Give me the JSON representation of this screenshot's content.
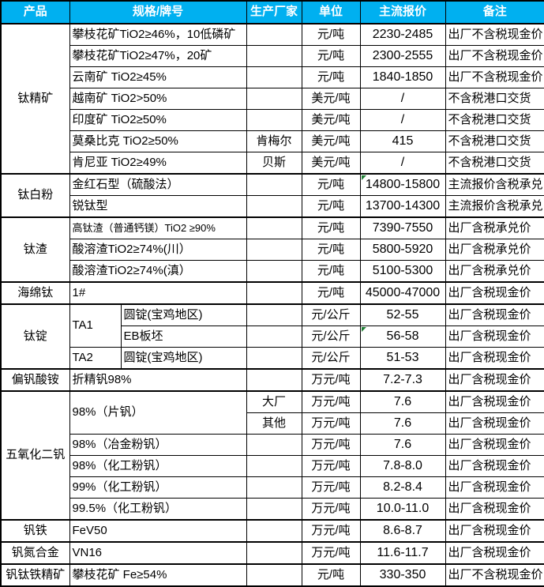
{
  "header": {
    "product": "产品",
    "spec": "规格/牌号",
    "manufacturer": "生产厂家",
    "unit": "单位",
    "price": "主流报价",
    "note": "备注"
  },
  "colors": {
    "header_bg": "#00B0F0",
    "header_text": "#FFFFFF",
    "grid": "#000000",
    "flag_green": "#1E7E34"
  },
  "rows": [
    {
      "product": "钛精矿",
      "spec": "攀枝花矿TiO2≥46%，10低磷矿",
      "manufacturer": "",
      "unit": "元/吨",
      "price": "2230-2485",
      "note": "出厂不含税现金价"
    },
    {
      "spec": "攀枝花矿TiO2≥47%，20矿",
      "manufacturer": "",
      "unit": "元/吨",
      "price": "2300-2555",
      "note": "出厂不含税现金价"
    },
    {
      "spec": "云南矿 TiO2≥45%",
      "manufacturer": "",
      "unit": "元/吨",
      "price": "1840-1850",
      "note": "出厂不含税现金价"
    },
    {
      "spec": "越南矿 TiO2>50%",
      "manufacturer": "",
      "unit": "美元/吨",
      "price": "/",
      "note": "不含税港口交货"
    },
    {
      "spec": "印度矿 TiO2≥50%",
      "manufacturer": "",
      "unit": "美元/吨",
      "price": "/",
      "note": "不含税港口交货"
    },
    {
      "spec": "莫桑比克 TiO2≥50%",
      "manufacturer": "肯梅尔",
      "unit": "美元/吨",
      "price": "415",
      "note": "不含税港口交货"
    },
    {
      "spec": "肯尼亚 TiO2≥49%",
      "manufacturer": "贝斯",
      "unit": "美元/吨",
      "price": "/",
      "note": "不含税港口交货"
    },
    {
      "product": "钛白粉",
      "spec": "金红石型（硫酸法）",
      "manufacturer": "",
      "unit": "元/吨",
      "price": "14800-15800",
      "note": "主流报价含税承兑",
      "flag": true
    },
    {
      "spec": "锐钛型",
      "manufacturer": "",
      "unit": "元/吨",
      "price": "13700-14300",
      "note": "主流报价含税承兑"
    },
    {
      "product": "钛渣",
      "spec": "高钛渣（普通钙镁）TiO2 ≥90%",
      "manufacturer": "",
      "unit": "元/吨",
      "price": "7390-7550",
      "note": "出厂含税承兑价"
    },
    {
      "spec": "酸溶渣TiO2≥74%(川）",
      "manufacturer": "",
      "unit": "元/吨",
      "price": "5800-5920",
      "note": "出厂含税承兑价"
    },
    {
      "spec": "酸溶渣TiO2≥74%(滇）",
      "manufacturer": "",
      "unit": "元/吨",
      "price": "5100-5300",
      "note": "出厂含税承兑价"
    },
    {
      "product": "海绵钛",
      "spec": "1#",
      "manufacturer": "",
      "unit": "元/吨",
      "price": "45000-47000",
      "note": "出厂含税现金价"
    },
    {
      "product": "钛锭",
      "grade": "TA1",
      "spec": "圆锭(宝鸡地区)",
      "manufacturer": "",
      "unit": "元/公斤",
      "price": "52-55",
      "note": "出厂含税现金价"
    },
    {
      "spec": "EB板坯",
      "manufacturer": "",
      "unit": "元/公斤",
      "price": "56-58",
      "note": "出厂含税现金价",
      "flag": true
    },
    {
      "grade": "TA2",
      "spec": "圆锭(宝鸡地区)",
      "manufacturer": "",
      "unit": "元/公斤",
      "price": "51-53",
      "note": "出厂含税现金价"
    },
    {
      "product": "偏钒酸铵",
      "spec": "折精钒98%",
      "manufacturer": "",
      "unit": "万元/吨",
      "price": "7.2-7.3",
      "note": "出厂含税现金价"
    },
    {
      "product": "五氧化二钒",
      "spec": "98%（片钒）",
      "manufacturer": "大厂",
      "unit": "万元/吨",
      "price": "7.6",
      "note": "出厂含税现金价"
    },
    {
      "manufacturer": "其他",
      "unit": "万元/吨",
      "price": "7.6",
      "note": "出厂含税现金价"
    },
    {
      "spec": "98%（冶金粉钒）",
      "manufacturer": "",
      "unit": "万元/吨",
      "price": "7.6",
      "note": "出厂含税现金价"
    },
    {
      "spec": "98%（化工粉钒）",
      "manufacturer": "",
      "unit": "万元/吨",
      "price": "7.8-8.0",
      "note": "出厂含税现金价"
    },
    {
      "spec": "99%（化工粉钒）",
      "manufacturer": "",
      "unit": "万元/吨",
      "price": "8.2-8.4",
      "note": "出厂含税现金价"
    },
    {
      "spec": "99.5%（化工粉钒）",
      "manufacturer": "",
      "unit": "万元/吨",
      "price": "10.0-11.0",
      "note": "出厂含税现金价"
    },
    {
      "product": "钒铁",
      "spec": "FeV50",
      "manufacturer": "",
      "unit": "万元/吨",
      "price": "8.6-8.7",
      "note": "出厂含税现金价"
    },
    {
      "product": "钒氮合金",
      "spec": "VN16",
      "manufacturer": "",
      "unit": "万元/吨",
      "price": "11.6-11.7",
      "note": "出厂含税现金价"
    },
    {
      "product": "钒钛铁精矿",
      "spec": "攀枝花矿 Fe≥54%",
      "manufacturer": "",
      "unit": "元/吨",
      "price": "330-350",
      "note": "出厂不含税现金价"
    }
  ]
}
